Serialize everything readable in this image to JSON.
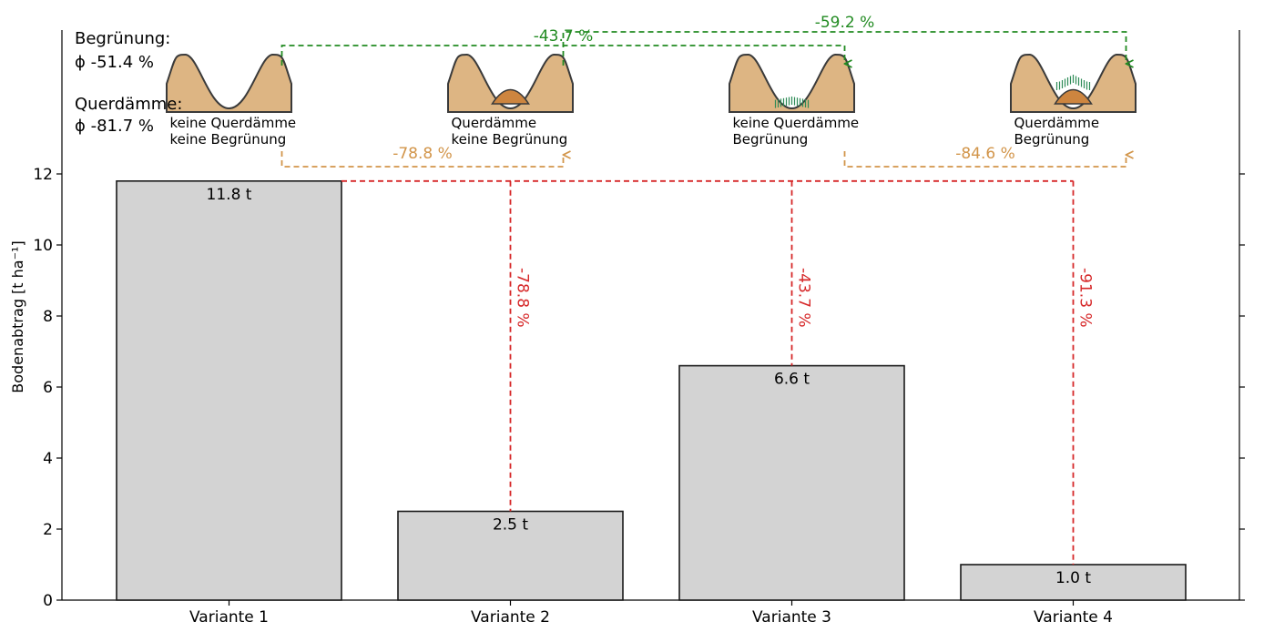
{
  "colors": {
    "bar_fill": "#d3d3d3",
    "bar_stroke": "#1a1a1a",
    "green": "#228b22",
    "orange": "#d2954a",
    "red": "#d62728",
    "soil": "#ddb583",
    "dam": "#cd853f",
    "vegetation": "#2e8b57"
  },
  "summary": {
    "greening_label": "Begrünung:",
    "greening_value": "ϕ -51.4 %",
    "dams_label": "Querdämme:",
    "dams_value": "ϕ -81.7 %"
  },
  "scenarios": [
    {
      "line1": "keine Querdämme",
      "line2": "keine Begrünung",
      "dam": false,
      "vegetation": false
    },
    {
      "line1": "Querdämme",
      "line2": "keine Begrünung",
      "dam": true,
      "vegetation": false
    },
    {
      "line1": "keine Querdämme",
      "line2": "Begrünung",
      "dam": false,
      "vegetation": true
    },
    {
      "line1": "Querdämme",
      "line2": "Begrünung",
      "dam": true,
      "vegetation": true
    }
  ],
  "chart_data": {
    "type": "bar",
    "categories": [
      "Variante 1",
      "Variante 2",
      "Variante 3",
      "Variante 4"
    ],
    "values": [
      11.8,
      2.5,
      6.6,
      1.0
    ],
    "bar_labels": [
      "11.8 t",
      "2.5 t",
      "6.6 t",
      "1.0 t"
    ],
    "ylabel": "Bodenabtrag [t ha⁻¹]",
    "ylim": [
      0,
      12.5
    ],
    "yticks": [
      0,
      2,
      4,
      6,
      8,
      10,
      12
    ],
    "grid": false,
    "reduction_vs_variant1": [
      {
        "target": 1,
        "label": "-78.8 %"
      },
      {
        "target": 2,
        "label": "-43.7 %"
      },
      {
        "target": 3,
        "label": "-91.3 %"
      }
    ],
    "greening_effects": [
      {
        "from": 0,
        "to": 2,
        "label": "-43.7 %"
      },
      {
        "from": 1,
        "to": 3,
        "label": "-59.2 %"
      }
    ],
    "dam_effects": [
      {
        "from": 0,
        "to": 1,
        "label": "-78.8 %"
      },
      {
        "from": 2,
        "to": 3,
        "label": "-84.6 %"
      }
    ]
  }
}
